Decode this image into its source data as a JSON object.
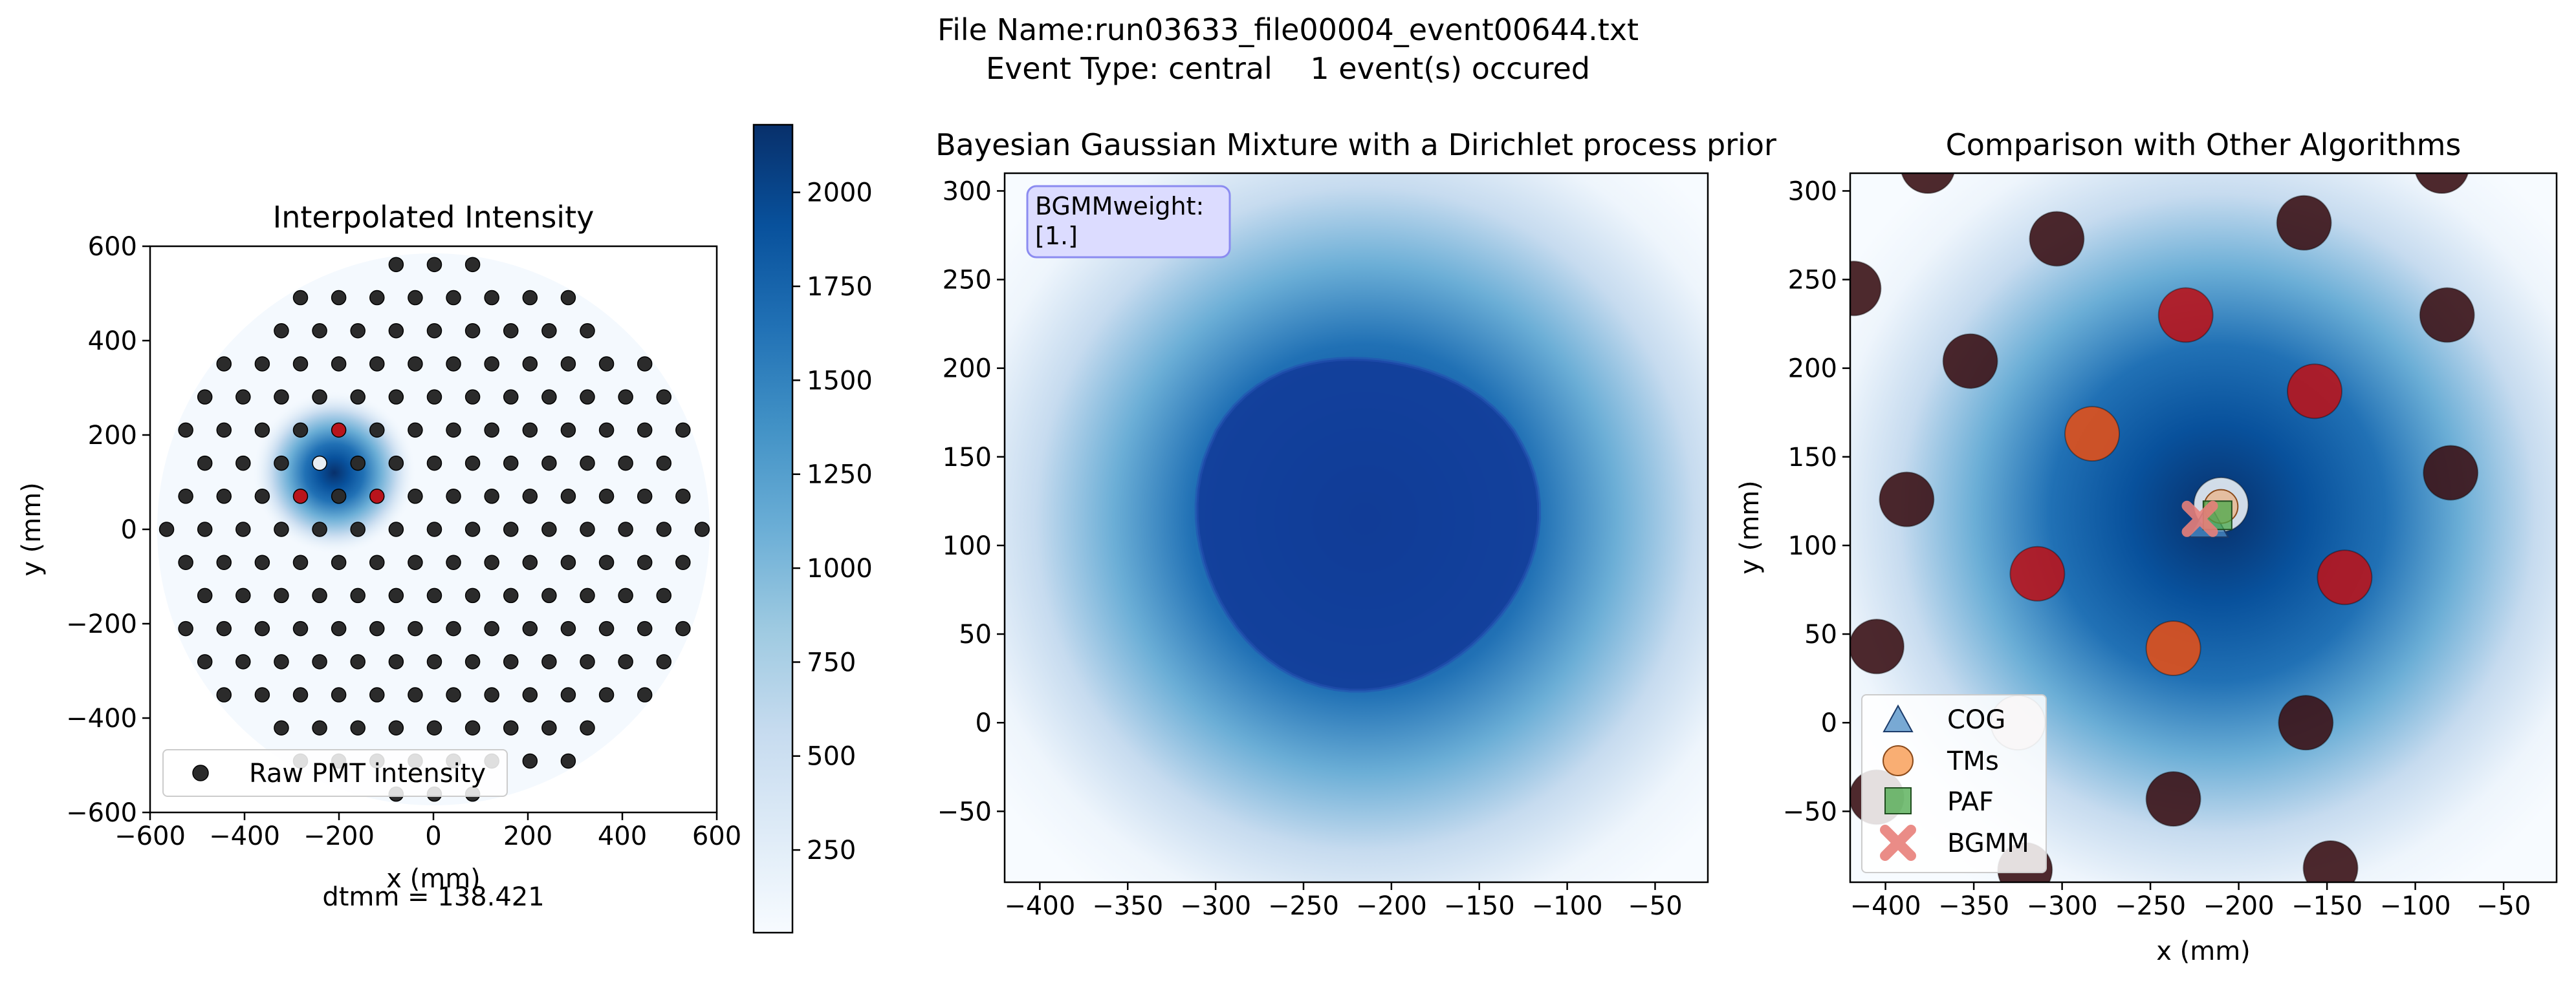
{
  "figure": {
    "title_line1": "File Name:run03633_file00004_event00644.txt",
    "title_line2": "Event Type: central    1 event(s) occured"
  },
  "panels": {
    "left": {
      "title": "Interpolated Intensity",
      "xlabel": "x (mm)",
      "ylabel": "y (mm)",
      "legend_label": "Raw PMT intensity",
      "footer": "dtmm = 138.421"
    },
    "middle": {
      "title": "Bayesian Gaussian Mixture with a Dirichlet process prior",
      "weight_box": "BGMMweight:",
      "weight_value": "[1.]"
    },
    "right": {
      "title": "Comparison with Other Algorithms",
      "xlabel": "x (mm)",
      "ylabel": "y (mm)",
      "legend": [
        "COG",
        "TMs",
        "PAF",
        "BGMM"
      ]
    }
  },
  "colors": {
    "cmap_low": "#f7fbff",
    "cmap_high": "#08306b",
    "pmt_dark": "#3b1216",
    "pmt_red": "#b8141c",
    "pmt_orange": "#e0501a",
    "cog": "#4c8cc6",
    "tms": "#f8a05a",
    "paf": "#4aa84a",
    "bgmm": "#e8807a",
    "textbox_bg": "#dcdcff",
    "textbox_edge": "#8b8bf0"
  },
  "chart_data": [
    {
      "type": "heatmap",
      "title": "Interpolated Intensity",
      "xlabel": "x (mm)",
      "ylabel": "y (mm)",
      "xlim": [
        -600,
        600
      ],
      "ylim": [
        -600,
        600
      ],
      "xticks": [
        -600,
        -400,
        -200,
        0,
        200,
        400,
        600
      ],
      "yticks": [
        -600,
        -400,
        -200,
        0,
        200,
        400,
        600
      ],
      "peak": {
        "x": -210,
        "y": 120,
        "sigma": 55,
        "max": 2150
      },
      "highlight_pmts": [
        {
          "x": -210,
          "y": 123,
          "level": "white"
        },
        {
          "x": -283,
          "y": 163,
          "level": "orange"
        },
        {
          "x": -237,
          "y": 42,
          "level": "orange"
        },
        {
          "x": -140,
          "y": 82,
          "level": "red"
        },
        {
          "x": -157,
          "y": 187,
          "level": "red"
        },
        {
          "x": -314,
          "y": 84,
          "level": "red"
        },
        {
          "x": -230,
          "y": 230,
          "level": "red"
        }
      ],
      "legend": "Raw PMT intensity",
      "legend_position": "lower-left",
      "annotation": "dtmm = 138.421"
    },
    {
      "type": "colorbar",
      "range": [
        30,
        2180
      ],
      "ticks": [
        250,
        500,
        750,
        1000,
        1250,
        1500,
        1750,
        2000
      ]
    },
    {
      "type": "heatmap",
      "title": "Bayesian Gaussian Mixture with a Dirichlet process prior",
      "xlim": [
        -420,
        -20
      ],
      "ylim": [
        -90,
        310
      ],
      "xticks": [
        -400,
        -350,
        -300,
        -250,
        -200,
        -150,
        -100,
        -50
      ],
      "yticks": [
        -50,
        0,
        50,
        100,
        150,
        200,
        250,
        300
      ],
      "bgmm_center": {
        "x": -215,
        "y": 115
      },
      "bgmm_blob_radius": 95,
      "weights": [
        1.0
      ]
    },
    {
      "type": "scatter",
      "title": "Comparison with Other Algorithms",
      "xlabel": "x (mm)",
      "ylabel": "y (mm)",
      "xlim": [
        -420,
        -20
      ],
      "ylim": [
        -90,
        310
      ],
      "xticks": [
        -400,
        -350,
        -300,
        -250,
        -200,
        -150,
        -100,
        -50
      ],
      "yticks": [
        -50,
        0,
        50,
        100,
        150,
        200,
        250,
        300
      ],
      "pmts": [
        {
          "x": -376,
          "y": 314,
          "level": "dark"
        },
        {
          "x": -85,
          "y": 314,
          "level": "dark"
        },
        {
          "x": -418,
          "y": 245,
          "level": "dark"
        },
        {
          "x": -303,
          "y": 273,
          "level": "dark"
        },
        {
          "x": -163,
          "y": 282,
          "level": "dark"
        },
        {
          "x": -352,
          "y": 204,
          "level": "dark"
        },
        {
          "x": -230,
          "y": 230,
          "level": "red"
        },
        {
          "x": -157,
          "y": 187,
          "level": "red"
        },
        {
          "x": -82,
          "y": 230,
          "level": "dark"
        },
        {
          "x": -283,
          "y": 163,
          "level": "orange"
        },
        {
          "x": -80,
          "y": 141,
          "level": "dark"
        },
        {
          "x": -388,
          "y": 126,
          "level": "dark"
        },
        {
          "x": -210,
          "y": 123,
          "level": "white"
        },
        {
          "x": -314,
          "y": 84,
          "level": "red"
        },
        {
          "x": -140,
          "y": 82,
          "level": "red"
        },
        {
          "x": -237,
          "y": 42,
          "level": "orange"
        },
        {
          "x": -405,
          "y": 43,
          "level": "dark"
        },
        {
          "x": -325,
          "y": 0,
          "level": "pale"
        },
        {
          "x": -162,
          "y": 0,
          "level": "dark"
        },
        {
          "x": -237,
          "y": -43,
          "level": "dark"
        },
        {
          "x": -405,
          "y": -42,
          "level": "dark"
        },
        {
          "x": -321,
          "y": -83,
          "level": "dark"
        },
        {
          "x": -148,
          "y": -82,
          "level": "dark"
        }
      ],
      "estimates": [
        {
          "name": "COG",
          "x": -217,
          "y": 112
        },
        {
          "name": "TMs",
          "x": -210,
          "y": 122
        },
        {
          "name": "PAF",
          "x": -212,
          "y": 117
        },
        {
          "name": "BGMM",
          "x": -222,
          "y": 115
        }
      ],
      "legend_position": "lower-left"
    }
  ]
}
